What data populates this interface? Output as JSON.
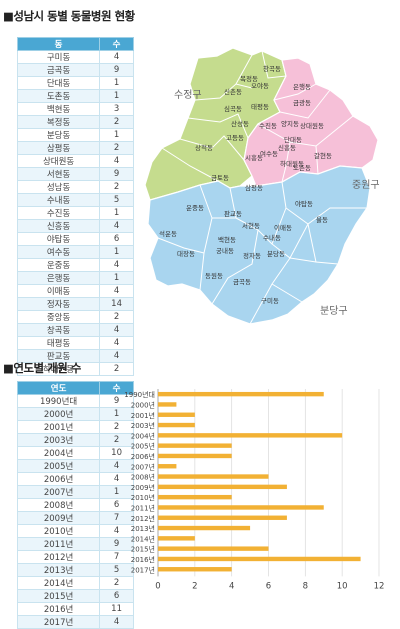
{
  "section1": {
    "title": "■성남시 동별 동물병원 현황",
    "headers": [
      "동",
      "수"
    ],
    "rows": [
      [
        "구미동",
        "4"
      ],
      [
        "금곡동",
        "9"
      ],
      [
        "단대동",
        "1"
      ],
      [
        "도촌동",
        "1"
      ],
      [
        "백현동",
        "3"
      ],
      [
        "복정동",
        "2"
      ],
      [
        "분당동",
        "1"
      ],
      [
        "삼평동",
        "2"
      ],
      [
        "상대원동",
        "4"
      ],
      [
        "서현동",
        "9"
      ],
      [
        "성남동",
        "2"
      ],
      [
        "수내동",
        "5"
      ],
      [
        "수진동",
        "1"
      ],
      [
        "신흥동",
        "4"
      ],
      [
        "야탑동",
        "6"
      ],
      [
        "여수동",
        "1"
      ],
      [
        "운중동",
        "4"
      ],
      [
        "은행동",
        "1"
      ],
      [
        "이매동",
        "4"
      ],
      [
        "정자동",
        "14"
      ],
      [
        "중앙동",
        "2"
      ],
      [
        "창곡동",
        "4"
      ],
      [
        "태평동",
        "4"
      ],
      [
        "판교동",
        "4"
      ],
      [
        "하대원동",
        "2"
      ]
    ]
  },
  "map": {
    "district_labels": [
      "수정구",
      "중원구",
      "분당구"
    ],
    "colors": {
      "sujeong": "#c5dc8e",
      "jungwon": "#f6c0d8",
      "bundang": "#a9d5ef"
    },
    "dong_labels": [
      "창곡동",
      "오야동",
      "신촌동",
      "복정동",
      "은행동",
      "금광동",
      "태평동",
      "심곡동",
      "산성동",
      "수진동",
      "양지동",
      "상대원동",
      "고등동",
      "신흥동",
      "단대동",
      "상적동",
      "하대원동",
      "시흥동",
      "여수동",
      "도촌동",
      "금토동",
      "갈현동",
      "삼평동",
      "야탑동",
      "운중동",
      "판교동",
      "이매동",
      "율동",
      "석운동",
      "백현동",
      "서현동",
      "수내동",
      "대장동",
      "궁내동",
      "분당동",
      "정자동",
      "동원동",
      "금곡동",
      "구미동"
    ]
  },
  "section2": {
    "title": "■연도별 개원 수",
    "headers": [
      "연도",
      "수"
    ],
    "rows": [
      [
        "1990년대",
        "9"
      ],
      [
        "2000년",
        "1"
      ],
      [
        "2001년",
        "2"
      ],
      [
        "2003년",
        "2"
      ],
      [
        "2004년",
        "10"
      ],
      [
        "2005년",
        "4"
      ],
      [
        "2006년",
        "4"
      ],
      [
        "2007년",
        "1"
      ],
      [
        "2008년",
        "6"
      ],
      [
        "2009년",
        "7"
      ],
      [
        "2010년",
        "4"
      ],
      [
        "2011년",
        "9"
      ],
      [
        "2012년",
        "7"
      ],
      [
        "2013년",
        "5"
      ],
      [
        "2014년",
        "2"
      ],
      [
        "2015년",
        "6"
      ],
      [
        "2016년",
        "11"
      ],
      [
        "2017년",
        "4"
      ]
    ]
  },
  "chart_data": {
    "type": "bar",
    "orientation": "horizontal",
    "categories": [
      "1990년대",
      "2000년",
      "2001년",
      "2003년",
      "2004년",
      "2005년",
      "2006년",
      "2007년",
      "2008년",
      "2009년",
      "2010년",
      "2011년",
      "2012년",
      "2013년",
      "2014년",
      "2015년",
      "2016년",
      "2017년"
    ],
    "values": [
      9,
      1,
      2,
      2,
      10,
      4,
      4,
      1,
      6,
      7,
      4,
      9,
      7,
      5,
      2,
      6,
      11,
      4
    ],
    "xlim": [
      0,
      12
    ],
    "xticks": [
      0,
      2,
      4,
      6,
      8,
      10,
      12
    ],
    "bar_color": "#f2b134",
    "grid": true
  }
}
